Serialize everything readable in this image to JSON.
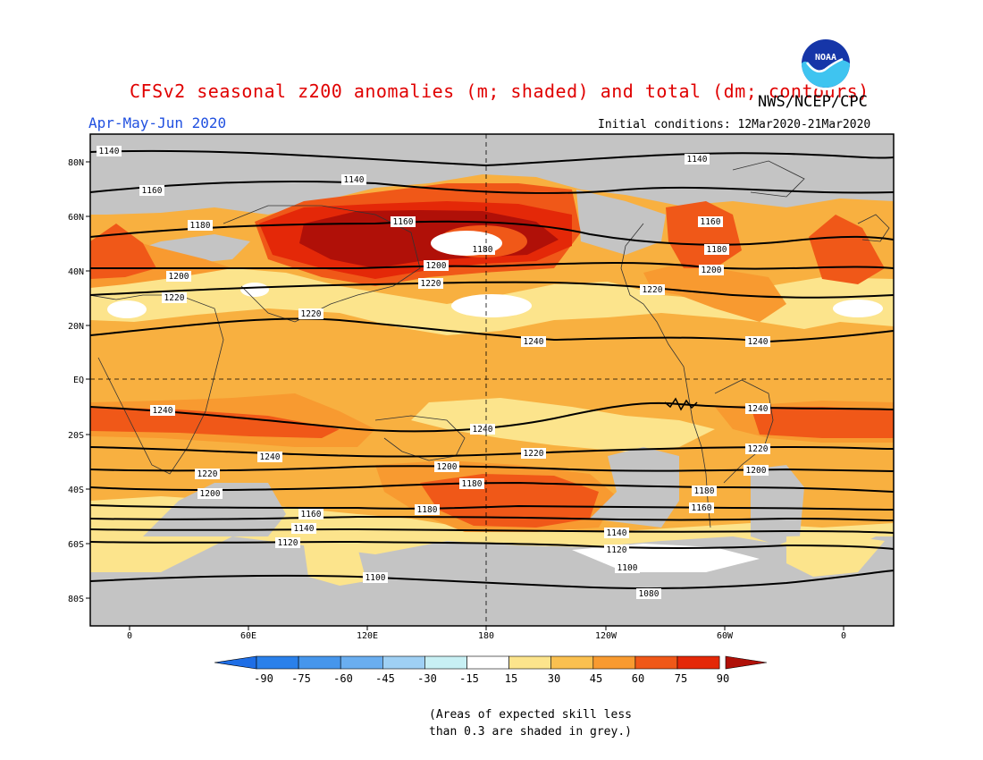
{
  "title": "CFSv2 seasonal z200 anomalies (m; shaded) and total (dm; contours)",
  "agency": "NWS/NCEP/CPC",
  "logo_text": "NOAA",
  "season": "Apr-May-Jun 2020",
  "initial_conditions": "Initial conditions: 12Mar2020-21Mar2020",
  "lat_labels": [
    "80N",
    "60N",
    "40N",
    "20N",
    "EQ",
    "20S",
    "40S",
    "60S",
    "80S"
  ],
  "lon_labels": [
    "0",
    "60E",
    "120E",
    "180",
    "120W",
    "60W",
    "0"
  ],
  "colorbar": {
    "ticks": [
      "-90",
      "-75",
      "-60",
      "-45",
      "-30",
      "-15",
      "15",
      "30",
      "45",
      "60",
      "75",
      "90"
    ],
    "colors": [
      "#1e6ee6",
      "#2a80ea",
      "#4696ec",
      "#6aaef0",
      "#9fd0f4",
      "#c8f0f4",
      "#ffffff",
      "#fce48c",
      "#fac050",
      "#f89a30",
      "#f05818",
      "#e42808",
      "#b01008"
    ]
  },
  "contour_labels": [
    {
      "text": "1140"
    },
    {
      "text": "1140"
    },
    {
      "text": "1140"
    },
    {
      "text": "1160"
    },
    {
      "text": "1160"
    },
    {
      "text": "1160"
    },
    {
      "text": "1180"
    },
    {
      "text": "1180"
    },
    {
      "text": "1180"
    },
    {
      "text": "1200"
    },
    {
      "text": "1200"
    },
    {
      "text": "1200"
    },
    {
      "text": "1220"
    },
    {
      "text": "1220"
    },
    {
      "text": "1220"
    },
    {
      "text": "1220"
    },
    {
      "text": "1240"
    },
    {
      "text": "1240"
    },
    {
      "text": "1240"
    },
    {
      "text": "1240"
    },
    {
      "text": "1240"
    },
    {
      "text": "1240"
    },
    {
      "text": "1220"
    },
    {
      "text": "1220"
    },
    {
      "text": "1220"
    },
    {
      "text": "1200"
    },
    {
      "text": "1200"
    },
    {
      "text": "1200"
    },
    {
      "text": "1180"
    },
    {
      "text": "1180"
    },
    {
      "text": "1180"
    },
    {
      "text": "1160"
    },
    {
      "text": "1160"
    },
    {
      "text": "1140"
    },
    {
      "text": "1140"
    },
    {
      "text": "1120"
    },
    {
      "text": "1120"
    },
    {
      "text": "1100"
    },
    {
      "text": "1100"
    },
    {
      "text": "1080"
    },
    {
      "text": "1080"
    }
  ],
  "skill_note": "(Areas of expected skill less\nthan 0.3 are shaded in grey.)"
}
